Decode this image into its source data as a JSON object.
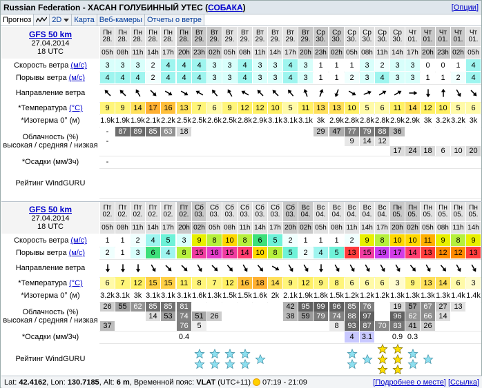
{
  "title": {
    "text": "Russian Federation - ХАСАН ГОЛУБИННЫЙ УТЕС",
    "dog_link": "СОБАКА",
    "options": "[Опции]"
  },
  "tabs": [
    {
      "label": "Прогноз",
      "active": true
    },
    {
      "label": "",
      "icon": "graph-icon"
    },
    {
      "label": "2D",
      "dropdown": true
    },
    {
      "label": "Карта"
    },
    {
      "label": "Веб-камеры"
    },
    {
      "label": "Отчеты о ветре"
    }
  ],
  "labels": {
    "wind": "Скорость ветра",
    "gust": "Порывы ветра",
    "unit_ms": "(м/с)",
    "dir": "Направление ветра",
    "temp": "*Температура",
    "unit_c": "(°C)",
    "iso": "*Изотерма 0° (м)",
    "cloud1": "Облачность (%)",
    "cloud2": "высокая / средняя / низкая",
    "precip": "*Осадки (мм/3ч)",
    "rating": "Рейтинг WindGURU"
  },
  "blocks": [
    {
      "model": "GFS 50 km",
      "date": "27.04.2014",
      "time": "18 UTC",
      "days": [
        "Пн",
        "Пн",
        "Пн",
        "Пн",
        "Пн",
        "Пн",
        "Вт",
        "Вт",
        "Вт",
        "Вт",
        "Вт",
        "Вт",
        "Вт",
        "Вт",
        "Ср",
        "Ср",
        "Ср",
        "Ср",
        "Ср",
        "Ср",
        "Чт",
        "Чт",
        "Чт",
        "Чт",
        "Чт",
        "Чт"
      ],
      "dates": [
        "28.",
        "28.",
        "28.",
        "28.",
        "28.",
        "28.",
        "29.",
        "29.",
        "29.",
        "29.",
        "29.",
        "29.",
        "29.",
        "29.",
        "30.",
        "30.",
        "30.",
        "30.",
        "30.",
        "30.",
        "01.",
        "01.",
        "01.",
        "01.",
        "01.",
        "01."
      ],
      "hours": [
        "05h",
        "08h",
        "11h",
        "14h",
        "17h",
        "20h",
        "23h",
        "02h",
        "05h",
        "08h",
        "11h",
        "14h",
        "17h",
        "20h",
        "23h",
        "02h",
        "05h",
        "08h",
        "11h",
        "14h",
        "17h",
        "20h",
        "23h",
        "02h",
        "05h",
        "08h"
      ],
      "wind": [
        "3",
        "3",
        "3",
        "2",
        "4",
        "4",
        "4",
        "3",
        "3",
        "4",
        "3",
        "3",
        "4",
        "3",
        "1",
        "1",
        "1",
        "3",
        "2",
        "3",
        "3",
        "0",
        "0",
        "1",
        "4",
        "4"
      ],
      "gust": [
        "4",
        "4",
        "4",
        "2",
        "4",
        "4",
        "4",
        "3",
        "3",
        "4",
        "3",
        "3",
        "4",
        "3",
        "1",
        "1",
        "2",
        "3",
        "4",
        "3",
        "3",
        "1",
        "1",
        "2",
        "4",
        "6"
      ],
      "dir": [
        135,
        135,
        150,
        315,
        300,
        300,
        120,
        140,
        150,
        120,
        135,
        135,
        140,
        160,
        200,
        20,
        300,
        250,
        240,
        240,
        270,
        0,
        180,
        330,
        315,
        300
      ],
      "temp": [
        "9",
        "9",
        "14",
        "17",
        "16",
        "13",
        "7",
        "6",
        "9",
        "12",
        "12",
        "10",
        "5",
        "11",
        "13",
        "13",
        "10",
        "5",
        "6",
        "11",
        "14",
        "12",
        "10",
        "5",
        "6",
        "11"
      ],
      "iso": [
        "1.9k",
        "1.9k",
        "1.9k",
        "2.1k",
        "2.2k",
        "2.5k",
        "2.5k",
        "2.6k",
        "2.5k",
        "2.8k",
        "2.9k",
        "3.1k",
        "3.1k",
        "3.1k",
        "3k",
        "2.9k",
        "2.8k",
        "2.8k",
        "2.8k",
        "2.9k",
        "2.9k",
        "3k",
        "3.2k",
        "3.2k",
        "3k",
        "3.2k"
      ],
      "cloud_high": [
        "-",
        "87",
        "89",
        "85",
        "63",
        "18",
        "",
        "",
        "",
        "",
        "",
        "",
        "",
        "",
        "29",
        "47",
        "77",
        "79",
        "88",
        "36",
        "",
        "",
        "",
        "",
        "",
        ""
      ],
      "cloud_mid": [
        "-",
        "",
        "",
        "",
        "",
        "",
        "",
        "",
        "",
        "",
        "",
        "",
        "",
        "",
        "",
        "",
        "9",
        "14",
        "12",
        "",
        "",
        "",
        "",
        "",
        "",
        ""
      ],
      "cloud_low": [
        "",
        "",
        "",
        "",
        "",
        "",
        "",
        "",
        "",
        "",
        "",
        "",
        "",
        "",
        "",
        "",
        "",
        "",
        "",
        "17",
        "24",
        "18",
        "6",
        "10",
        "20",
        ""
      ],
      "precip": [
        "-",
        "",
        "",
        "",
        "",
        "",
        "",
        "",
        "",
        "",
        "",
        "",
        "",
        "",
        "",
        "",
        "",
        "",
        "",
        "",
        "",
        "",
        "",
        "",
        "",
        ""
      ],
      "rating": [
        0,
        0,
        0,
        0,
        0,
        0,
        0,
        0,
        0,
        0,
        0,
        0,
        0,
        0,
        0,
        0,
        0,
        0,
        0,
        0,
        0,
        0,
        0,
        0,
        0,
        0
      ]
    },
    {
      "model": "GFS 50 km",
      "date": "27.04.2014",
      "time": "18 UTC",
      "days": [
        "Пт",
        "Пт",
        "Пт",
        "Пт",
        "Пт",
        "Пт",
        "Сб",
        "Сб",
        "Сб",
        "Сб",
        "Сб",
        "Сб",
        "Сб",
        "Вс",
        "Вс",
        "Вс",
        "Вс",
        "Вс",
        "Вс",
        "Пн",
        "Пн",
        "Пн",
        "Пн",
        "Пн",
        "Пн",
        "Пн"
      ],
      "dates": [
        "02.",
        "02.",
        "02.",
        "02.",
        "02.",
        "02.",
        "03.",
        "03.",
        "03.",
        "03.",
        "03.",
        "03.",
        "03.",
        "04.",
        "04.",
        "04.",
        "04.",
        "04.",
        "04.",
        "05.",
        "05.",
        "05.",
        "05.",
        "05.",
        "05.",
        "05."
      ],
      "hours": [
        "05h",
        "08h",
        "11h",
        "14h",
        "17h",
        "20h",
        "02h",
        "05h",
        "08h",
        "11h",
        "14h",
        "17h",
        "20h",
        "02h",
        "05h",
        "08h",
        "11h",
        "14h",
        "17h",
        "20h",
        "02h",
        "05h",
        "08h",
        "11h",
        "14h",
        "17h"
      ],
      "wind": [
        "1",
        "1",
        "2",
        "4",
        "5",
        "3",
        "9",
        "8",
        "10",
        "8",
        "6",
        "5",
        "2",
        "1",
        "1",
        "1",
        "2",
        "9",
        "8",
        "10",
        "10",
        "11",
        "9",
        "8",
        "9",
        "8"
      ],
      "gust": [
        "2",
        "1",
        "3",
        "6",
        "4",
        "8",
        "15",
        "16",
        "15",
        "14",
        "10",
        "8",
        "5",
        "2",
        "4",
        "5",
        "13",
        "15",
        "19",
        "17",
        "14",
        "13",
        "12",
        "12",
        "13",
        "12"
      ],
      "dir": [
        0,
        0,
        0,
        330,
        315,
        315,
        330,
        315,
        320,
        330,
        320,
        300,
        330,
        330,
        0,
        330,
        330,
        330,
        330,
        330,
        320,
        330,
        320,
        330,
        330,
        330
      ],
      "temp": [
        "6",
        "7",
        "12",
        "15",
        "15",
        "11",
        "8",
        "7",
        "12",
        "16",
        "18",
        "14",
        "9",
        "12",
        "9",
        "8",
        "6",
        "6",
        "6",
        "3",
        "9",
        "13",
        "14",
        "6",
        "3",
        "13"
      ],
      "iso": [
        "3.2k",
        "3.1k",
        "3k",
        "3.1k",
        "3.1k",
        "3.1k",
        "1.6k",
        "1.3k",
        "1.5k",
        "1.5k",
        "1.6k",
        "2k",
        "2.1k",
        "1.9k",
        "1.8k",
        "1.5k",
        "1.2k",
        "1.2k",
        "1.2k",
        "1.3k",
        "1.3k",
        "1.3k",
        "1.3k",
        "1.4k",
        "1.4k",
        "1.6k"
      ],
      "cloud_high": [
        "26",
        "55",
        "62",
        "85",
        "85",
        "81",
        "",
        "",
        "",
        "",
        "",
        "",
        "42",
        "95",
        "99",
        "96",
        "85",
        "76",
        "",
        "19",
        "57",
        "67",
        "27",
        "13",
        "",
        ""
      ],
      "cloud_mid": [
        "",
        "",
        "",
        "14",
        "53",
        "74",
        "51",
        "26",
        "",
        "",
        "",
        "",
        "38",
        "59",
        "79",
        "74",
        "88",
        "97",
        "",
        "96",
        "62",
        "66",
        "14",
        "",
        "",
        ""
      ],
      "cloud_low": [
        "37",
        "",
        "",
        "",
        "",
        "76",
        "5",
        "",
        "",
        "",
        "",
        "",
        "",
        "",
        "",
        "8",
        "93",
        "87",
        "70",
        "83",
        "41",
        "26",
        "",
        "",
        "",
        ""
      ],
      "precip": [
        "",
        "",
        "",
        "",
        "",
        "0.4",
        "",
        "",
        "",
        "",
        "",
        "",
        "",
        "",
        "",
        "",
        "4",
        "3.1",
        "",
        "0.9",
        "0.3",
        "",
        "",
        "",
        "",
        ""
      ],
      "rating": [
        0,
        0,
        0,
        0,
        0,
        0,
        2,
        2,
        2,
        2,
        1,
        0,
        0,
        0,
        0,
        0,
        2,
        1,
        3,
        3,
        2,
        1,
        0,
        0,
        0,
        0
      ]
    }
  ],
  "footer": {
    "lat_label": "Lat:",
    "lat": "42.4162",
    "lon_label": "Lon:",
    "lon": "130.7185",
    "alt_label": "Alt:",
    "alt": "6 m",
    "tz_label": "Временной пояс:",
    "tz": "VLAT",
    "tz_offset": "(UTC+11)",
    "sun": "07:19 - 21:09",
    "more": "[Подробнее о месте]",
    "link": "[Ссылка]"
  }
}
